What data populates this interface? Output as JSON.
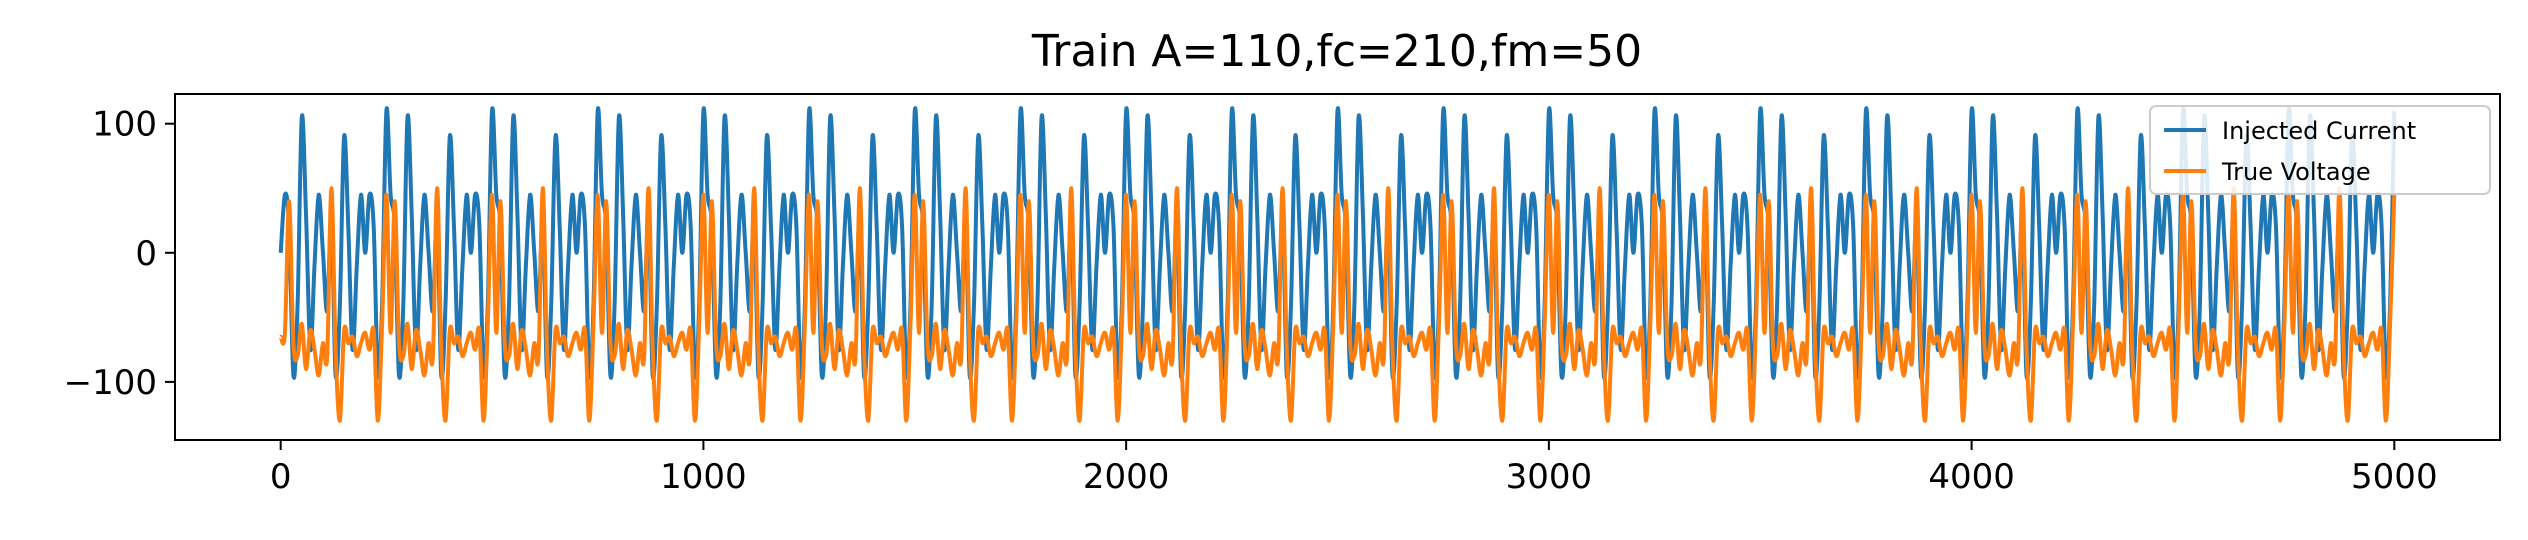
{
  "chart_data": {
    "type": "line",
    "title": "Train A=110,fc=210,fm=50",
    "xlabel": "",
    "ylabel": "",
    "xlim": [
      -250,
      5250
    ],
    "ylim": [
      -145,
      123
    ],
    "x_ticks": [
      0,
      1000,
      2000,
      3000,
      4000,
      5000
    ],
    "x_tick_labels": [
      "0",
      "1000",
      "2000",
      "3000",
      "4000",
      "5000"
    ],
    "y_ticks": [
      -100,
      0,
      100
    ],
    "y_tick_labels": [
      "−100",
      "0",
      "100"
    ],
    "grid": false,
    "legend_position": "top-right",
    "x_domain": [
      0,
      5000
    ],
    "series": [
      {
        "name": "Injected Current",
        "color": "#1f77b4",
        "note_shape": "AM-like oscillation, carrier period ~33 samples, envelope period ~100 samples, amplitude up to 110",
        "x": [
          0,
          10,
          20,
          30,
          40,
          50,
          60,
          70,
          80,
          90,
          100,
          110,
          120,
          130,
          140,
          150,
          160,
          170,
          180,
          190,
          200,
          210,
          220,
          230,
          240,
          250
        ],
        "y": [
          0,
          45,
          20,
          -95,
          -40,
          105,
          30,
          -75,
          -10,
          45,
          0,
          -45,
          30,
          -95,
          -40,
          90,
          20,
          -75,
          -10,
          45,
          0,
          45,
          20,
          -95,
          -40,
          110
        ]
      },
      {
        "name": "True Voltage",
        "color": "#ff7f0e",
        "note_shape": "spiking response mostly between -80 and -55 with peaks near 50 and troughs near -130",
        "x": [
          0,
          10,
          20,
          30,
          40,
          50,
          60,
          70,
          80,
          90,
          100,
          110,
          120,
          130,
          140,
          150,
          160,
          170,
          180,
          190,
          200,
          210,
          220,
          230,
          240,
          250
        ],
        "y": [
          -65,
          -62,
          40,
          -70,
          -80,
          -55,
          -90,
          -60,
          -75,
          -95,
          -70,
          -80,
          50,
          -75,
          -130,
          -60,
          -70,
          -65,
          -80,
          -70,
          -62,
          -75,
          -60,
          -130,
          -55,
          45
        ]
      }
    ]
  }
}
